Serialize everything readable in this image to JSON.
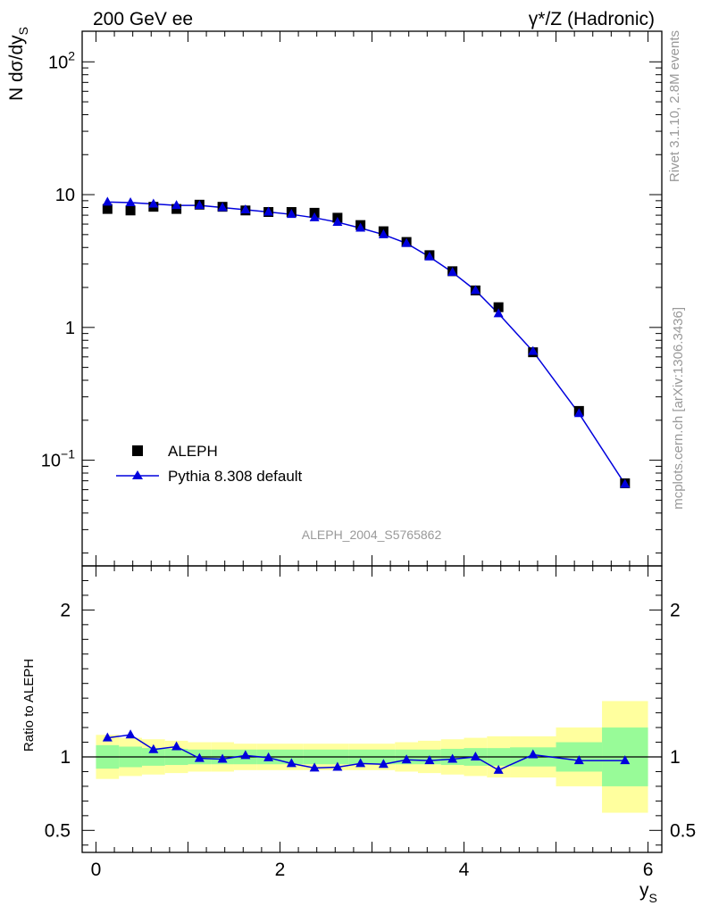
{
  "header": {
    "left": "200 GeV ee",
    "right": "γ*/Z (Hadronic)"
  },
  "side_labels": {
    "rivet": "Rivet 3.1.10,  2.8M events",
    "mcplots": "mcplots.cern.ch [arXiv:1306.3436]"
  },
  "watermark": "ALEPH_2004_S5765862",
  "legend": {
    "data_label": "ALEPH",
    "mc_label": "Pythia 8.308 default"
  },
  "colors": {
    "data": "#000000",
    "mc": "#0000dd",
    "band_inner": "#98fb98",
    "band_outer": "#ffff9e"
  },
  "chart_data": [
    {
      "type": "scatter",
      "yscale": "log",
      "ylabel": "N dσ/dy_S",
      "xlim": [
        -0.15,
        6.15
      ],
      "ylim": [
        0.016,
        170
      ],
      "yticks": [
        {
          "value": 100,
          "label": "10^2"
        },
        {
          "value": 10,
          "label": "10"
        },
        {
          "value": 1,
          "label": "1"
        },
        {
          "value": 0.1,
          "label": "10^-1"
        }
      ],
      "legend_position": "bottom-left",
      "series": [
        {
          "name": "ALEPH",
          "marker": "square",
          "x": [
            0.125,
            0.375,
            0.625,
            0.875,
            1.125,
            1.375,
            1.625,
            1.875,
            2.125,
            2.375,
            2.625,
            2.875,
            3.125,
            3.375,
            3.625,
            3.875,
            4.125,
            4.375,
            4.75,
            5.25,
            5.75
          ],
          "y": [
            7.8,
            7.6,
            8.1,
            7.8,
            8.4,
            8.1,
            7.6,
            7.4,
            7.4,
            7.3,
            6.7,
            5.9,
            5.3,
            4.4,
            3.5,
            2.65,
            1.9,
            1.42,
            0.65,
            0.235,
            0.067
          ]
        },
        {
          "name": "Pythia 8.308 default",
          "marker": "triangle",
          "x": [
            0.125,
            0.375,
            0.625,
            0.875,
            1.125,
            1.375,
            1.625,
            1.875,
            2.125,
            2.375,
            2.625,
            2.875,
            3.125,
            3.375,
            3.625,
            3.875,
            4.125,
            4.375,
            4.75,
            5.25,
            5.75
          ],
          "y": [
            8.8,
            8.7,
            8.5,
            8.3,
            8.3,
            8.0,
            7.7,
            7.4,
            7.1,
            6.7,
            6.2,
            5.6,
            5.0,
            4.3,
            3.4,
            2.6,
            1.9,
            1.27,
            0.66,
            0.225,
            0.066
          ]
        }
      ]
    },
    {
      "type": "line",
      "yscale": "linear",
      "xlabel": "y_S",
      "ylabel": "Ratio to ALEPH",
      "xlim": [
        -0.15,
        6.15
      ],
      "ylim": [
        0.35,
        2.3
      ],
      "xticks": [
        0,
        2,
        4,
        6
      ],
      "yticks": [
        {
          "value": 0.5,
          "label": "0.5"
        },
        {
          "value": 1,
          "label": "1"
        },
        {
          "value": 2,
          "label": "2"
        }
      ],
      "reference_line": 1,
      "bins": [
        {
          "lo": 0.0,
          "hi": 0.25,
          "inner": 0.08,
          "outer": 0.15
        },
        {
          "lo": 0.25,
          "hi": 0.5,
          "inner": 0.07,
          "outer": 0.13
        },
        {
          "lo": 0.5,
          "hi": 0.75,
          "inner": 0.06,
          "outer": 0.12
        },
        {
          "lo": 0.75,
          "hi": 1.0,
          "inner": 0.055,
          "outer": 0.11
        },
        {
          "lo": 1.0,
          "hi": 1.25,
          "inner": 0.05,
          "outer": 0.1
        },
        {
          "lo": 1.25,
          "hi": 1.5,
          "inner": 0.05,
          "outer": 0.1
        },
        {
          "lo": 1.5,
          "hi": 1.75,
          "inner": 0.05,
          "outer": 0.09
        },
        {
          "lo": 1.75,
          "hi": 2.0,
          "inner": 0.05,
          "outer": 0.09
        },
        {
          "lo": 2.0,
          "hi": 2.25,
          "inner": 0.05,
          "outer": 0.09
        },
        {
          "lo": 2.25,
          "hi": 2.5,
          "inner": 0.05,
          "outer": 0.09
        },
        {
          "lo": 2.5,
          "hi": 2.75,
          "inner": 0.05,
          "outer": 0.09
        },
        {
          "lo": 2.75,
          "hi": 3.0,
          "inner": 0.05,
          "outer": 0.09
        },
        {
          "lo": 3.0,
          "hi": 3.25,
          "inner": 0.05,
          "outer": 0.09
        },
        {
          "lo": 3.25,
          "hi": 3.5,
          "inner": 0.05,
          "outer": 0.1
        },
        {
          "lo": 3.5,
          "hi": 3.75,
          "inner": 0.05,
          "outer": 0.11
        },
        {
          "lo": 3.75,
          "hi": 4.0,
          "inner": 0.055,
          "outer": 0.12
        },
        {
          "lo": 4.0,
          "hi": 4.25,
          "inner": 0.06,
          "outer": 0.13
        },
        {
          "lo": 4.25,
          "hi": 4.5,
          "inner": 0.06,
          "outer": 0.14
        },
        {
          "lo": 4.5,
          "hi": 5.0,
          "inner": 0.065,
          "outer": 0.14
        },
        {
          "lo": 5.0,
          "hi": 5.5,
          "inner": 0.1,
          "outer": 0.2
        },
        {
          "lo": 5.5,
          "hi": 6.0,
          "inner": 0.2,
          "outer": 0.38
        }
      ],
      "series": [
        {
          "name": "Pythia 8.308 default",
          "x": [
            0.125,
            0.375,
            0.625,
            0.875,
            1.125,
            1.375,
            1.625,
            1.875,
            2.125,
            2.375,
            2.625,
            2.875,
            3.125,
            3.375,
            3.625,
            3.875,
            4.125,
            4.375,
            4.75,
            5.25,
            5.75
          ],
          "y": [
            1.13,
            1.15,
            1.05,
            1.07,
            0.99,
            0.985,
            1.01,
            0.995,
            0.955,
            0.925,
            0.93,
            0.955,
            0.95,
            0.98,
            0.975,
            0.985,
            1.0,
            0.91,
            1.015,
            0.975,
            0.975
          ]
        }
      ]
    }
  ]
}
